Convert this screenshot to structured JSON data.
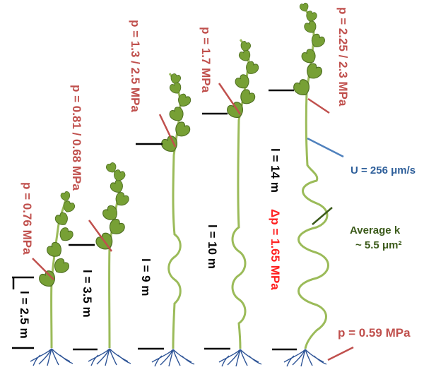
{
  "plants": [
    {
      "pressure": "p = 0.76 MPa",
      "height": "l = 2.5 m"
    },
    {
      "pressure": "p = 0.81 / 0.68 MPa",
      "height": "l = 3.5 m"
    },
    {
      "pressure": "p = 1.3 / 2.5 MPa",
      "height": "l = 9 m"
    },
    {
      "pressure": "p = 1.7 MPa",
      "height": "l = 10 m"
    },
    {
      "pressure": "p = 2.25 / 2.3 MPa",
      "height": "l = 14 m",
      "delta": "Δp = 1.65 MPa",
      "velocity": "U = 256 μm/s",
      "permeability_1": "Average k",
      "permeability_2": "~ 5.5 μm²",
      "base_pressure": "p = 0.59 MPa"
    }
  ],
  "colors": {
    "stem": "#9bbb59",
    "leaf": "#77a035",
    "leaf_edge": "#4f6f22",
    "root": "#2f5597",
    "pointer_red": "#c0504d",
    "pointer_blue": "#4f81bd",
    "pointer_olive": "#3b5a1a"
  }
}
